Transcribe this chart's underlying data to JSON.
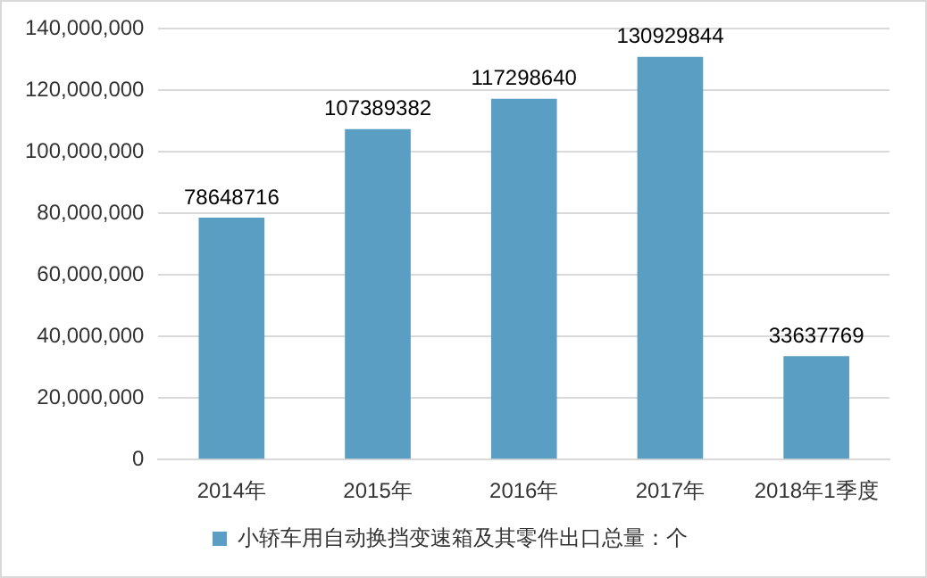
{
  "chart_data": {
    "type": "bar",
    "categories": [
      "2014年",
      "2015年",
      "2016年",
      "2017年",
      "2018年1季度"
    ],
    "series": [
      {
        "name": "小轿车用自动换挡变速箱及其零件出口总量：个",
        "color": "#5a9ec4",
        "values": [
          78648716,
          107389382,
          117298640,
          130929844,
          33637769
        ]
      }
    ],
    "ylim": [
      0,
      140000000
    ],
    "yticks": [
      {
        "value": 0,
        "label": "0"
      },
      {
        "value": 20000000,
        "label": "20,000,000"
      },
      {
        "value": 40000000,
        "label": "40,000,000"
      },
      {
        "value": 60000000,
        "label": "60,000,000"
      },
      {
        "value": 80000000,
        "label": "80,000,000"
      },
      {
        "value": 100000000,
        "label": "100,000,000"
      },
      {
        "value": 120000000,
        "label": "120,000,000"
      },
      {
        "value": 140000000,
        "label": "140,000,000"
      }
    ],
    "grid": "y",
    "legend": "bottom",
    "data_labels": true
  }
}
